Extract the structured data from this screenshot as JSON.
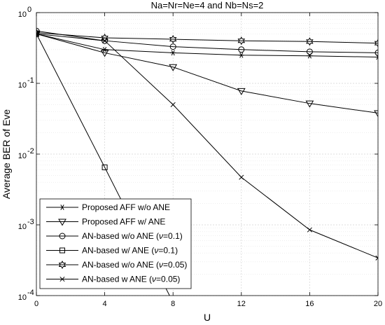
{
  "chart_data": {
    "type": "line",
    "title": "Na=Nr=Ne=4 and Nb=Ns=2",
    "xlabel": "U",
    "ylabel": "Average BER of Eve",
    "x_scale": "linear",
    "y_scale": "log",
    "xlim": [
      0,
      20
    ],
    "ylim": [
      0.0001,
      1
    ],
    "x_ticks": [
      0,
      4,
      8,
      12,
      16,
      20
    ],
    "x_tick_labels": [
      "0",
      "4",
      "8",
      "12",
      "16",
      "20"
    ],
    "y_ticks": [
      0.0001,
      0.001,
      0.01,
      0.1,
      1
    ],
    "y_tick_labels": [
      {
        "base": "10",
        "exp": "-4"
      },
      {
        "base": "10",
        "exp": "-3"
      },
      {
        "base": "10",
        "exp": "-2"
      },
      {
        "base": "10",
        "exp": "-1"
      },
      {
        "base": "10",
        "exp": "0"
      }
    ],
    "grid": true,
    "legend_position": "bottom-left",
    "series": [
      {
        "name": "Proposed AFF w/o ANE",
        "marker": "asterisk",
        "x": [
          0,
          4,
          8,
          12,
          16,
          20
        ],
        "y": [
          0.5,
          0.3,
          0.27,
          0.25,
          0.245,
          0.235
        ]
      },
      {
        "name": "Proposed AFF w/ ANE",
        "marker": "triangle-down",
        "x": [
          0,
          4,
          8,
          12,
          16,
          20
        ],
        "y": [
          0.5,
          0.27,
          0.17,
          0.078,
          0.052,
          0.038
        ]
      },
      {
        "name": "AN-based w/o ANE (ν=0.1)",
        "marker": "circle",
        "x": [
          0,
          4,
          8,
          12,
          16,
          20
        ],
        "y": [
          0.55,
          0.4,
          0.33,
          0.3,
          0.28,
          0.27
        ]
      },
      {
        "name": "AN-based w/ ANE (ν=0.1)",
        "marker": "square",
        "x": [
          0,
          4,
          8
        ],
        "y": [
          0.5,
          0.0065,
          8e-05
        ]
      },
      {
        "name": "AN-based w/o ANE (ν=0.05)",
        "marker": "hexagram",
        "x": [
          0,
          4,
          8,
          12,
          16,
          20
        ],
        "y": [
          0.52,
          0.44,
          0.42,
          0.4,
          0.39,
          0.37
        ]
      },
      {
        "name": "AN-based w ANE (ν=0.05)",
        "marker": "x",
        "x": [
          0,
          4,
          8,
          12,
          16,
          20
        ],
        "y": [
          0.5,
          0.4,
          0.05,
          0.0047,
          0.00085,
          0.00034
        ]
      }
    ],
    "legend": [
      {
        "prefix": "Proposed AFF w/o ANE",
        "nu": "",
        "suffix": ""
      },
      {
        "prefix": "Proposed AFF w/ ANE",
        "nu": "",
        "suffix": ""
      },
      {
        "prefix": "AN-based w/o ANE (",
        "nu": "ν",
        "suffix": "=0.1)"
      },
      {
        "prefix": "AN-based w/ ANE (",
        "nu": "ν",
        "suffix": "=0.1)"
      },
      {
        "prefix": "AN-based w/o ANE (",
        "nu": "ν",
        "suffix": "=0.05)"
      },
      {
        "prefix": "AN-based w ANE (",
        "nu": "ν",
        "suffix": "=0.05)"
      }
    ]
  }
}
